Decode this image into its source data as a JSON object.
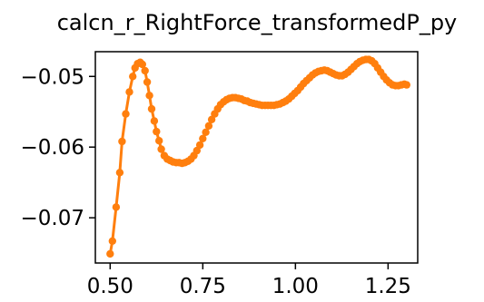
{
  "chart_data": {
    "type": "line",
    "title": "calcn_r_RightForce_transformedP_py",
    "xlabel": "",
    "ylabel": "",
    "xlim": [
      0.46,
      1.33
    ],
    "ylim": [
      -0.0764,
      -0.0465
    ],
    "x_ticks": [
      0.5,
      0.75,
      1.0,
      1.25
    ],
    "x_tick_labels": [
      "0.50",
      "0.75",
      "1.00",
      "1.25"
    ],
    "y_ticks": [
      -0.05,
      -0.06,
      -0.07
    ],
    "y_tick_labels": [
      "−0.05",
      "−0.06",
      "−0.07"
    ],
    "grid": false,
    "legend": "none",
    "series": [
      {
        "color": "#ff7f0e",
        "marker": "circle",
        "x": [
          0.5,
          0.506,
          0.516,
          0.526,
          0.532,
          0.542,
          0.552,
          0.561,
          0.567,
          0.574,
          0.581,
          0.587,
          0.594,
          0.6,
          0.606,
          0.612,
          0.619,
          0.625,
          0.632,
          0.638,
          0.646,
          0.654,
          0.662,
          0.67,
          0.678,
          0.686,
          0.694,
          0.702,
          0.71,
          0.718,
          0.726,
          0.734,
          0.742,
          0.75,
          0.758,
          0.766,
          0.774,
          0.782,
          0.79,
          0.798,
          0.806,
          0.814,
          0.822,
          0.83,
          0.838,
          0.846,
          0.854,
          0.862,
          0.87,
          0.878,
          0.886,
          0.894,
          0.902,
          0.91,
          0.918,
          0.926,
          0.934,
          0.942,
          0.95,
          0.958,
          0.966,
          0.974,
          0.982,
          0.99,
          0.998,
          1.006,
          1.014,
          1.022,
          1.03,
          1.038,
          1.046,
          1.054,
          1.062,
          1.07,
          1.078,
          1.086,
          1.094,
          1.102,
          1.11,
          1.118,
          1.126,
          1.134,
          1.142,
          1.15,
          1.158,
          1.166,
          1.174,
          1.182,
          1.19,
          1.198,
          1.206,
          1.214,
          1.222,
          1.23,
          1.238,
          1.246,
          1.254,
          1.262,
          1.27,
          1.278,
          1.286,
          1.294,
          1.3
        ],
        "y": [
          -0.0751,
          -0.0733,
          -0.0685,
          -0.0636,
          -0.0592,
          -0.0553,
          -0.0522,
          -0.05,
          -0.0488,
          -0.0482,
          -0.048,
          -0.0483,
          -0.0492,
          -0.0508,
          -0.0527,
          -0.0546,
          -0.0563,
          -0.0578,
          -0.0591,
          -0.0603,
          -0.0612,
          -0.0617,
          -0.0619,
          -0.0621,
          -0.0622,
          -0.0622,
          -0.0623,
          -0.0622,
          -0.062,
          -0.0617,
          -0.0612,
          -0.0605,
          -0.0597,
          -0.0588,
          -0.0579,
          -0.057,
          -0.0561,
          -0.0553,
          -0.0546,
          -0.054,
          -0.0536,
          -0.0533,
          -0.0531,
          -0.053,
          -0.053,
          -0.0531,
          -0.0532,
          -0.0534,
          -0.0535,
          -0.0537,
          -0.0538,
          -0.0539,
          -0.054,
          -0.0541,
          -0.0541,
          -0.0541,
          -0.0541,
          -0.0541,
          -0.054,
          -0.0539,
          -0.0537,
          -0.0535,
          -0.0532,
          -0.0528,
          -0.0524,
          -0.052,
          -0.0515,
          -0.051,
          -0.0506,
          -0.0502,
          -0.0498,
          -0.0495,
          -0.0493,
          -0.0492,
          -0.0491,
          -0.0492,
          -0.0494,
          -0.0496,
          -0.0498,
          -0.0499,
          -0.0499,
          -0.0497,
          -0.0494,
          -0.049,
          -0.0486,
          -0.0482,
          -0.0479,
          -0.0477,
          -0.0476,
          -0.0476,
          -0.0478,
          -0.0482,
          -0.0488,
          -0.0494,
          -0.05,
          -0.0505,
          -0.0509,
          -0.0512,
          -0.0513,
          -0.0513,
          -0.0512,
          -0.0511,
          -0.0512
        ]
      }
    ]
  }
}
